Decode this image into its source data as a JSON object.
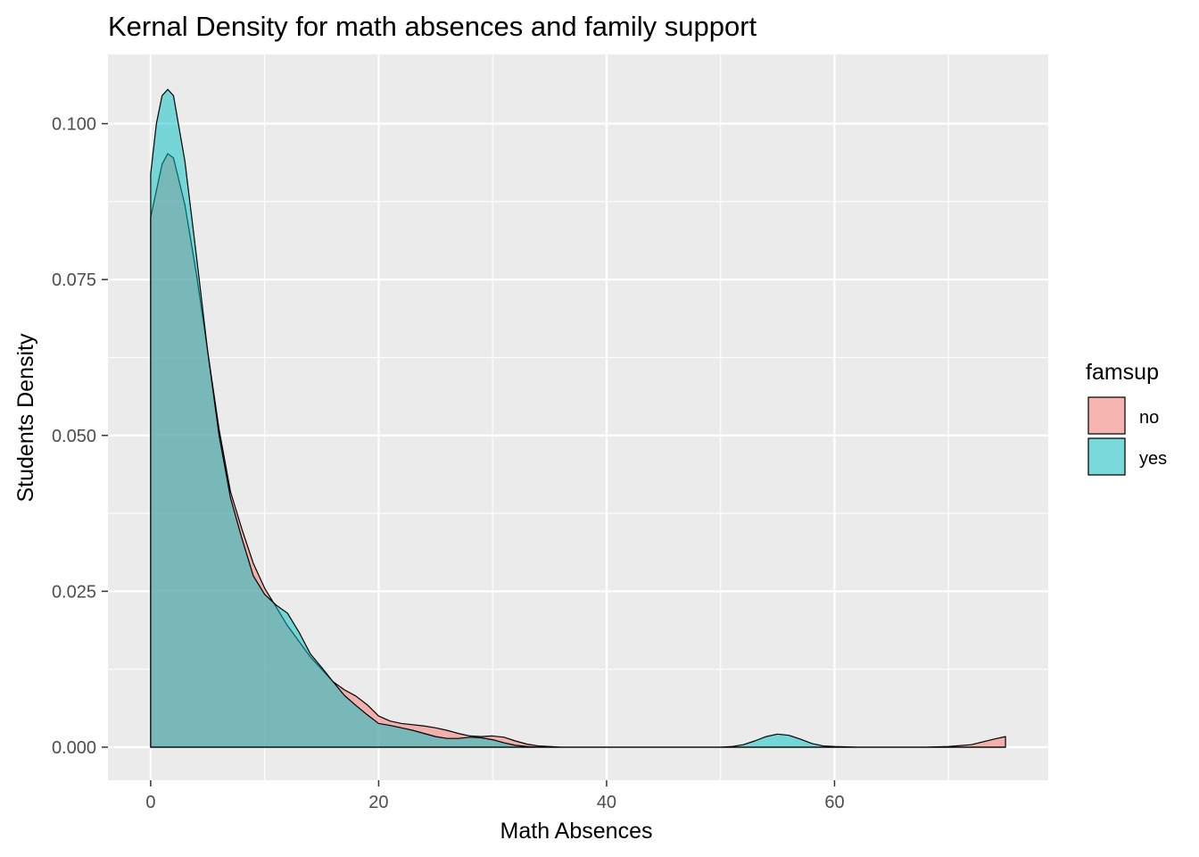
{
  "chart_data": {
    "type": "area",
    "title": "Kernal Density for math absences and family support",
    "xlabel": "Math Absences",
    "ylabel": "Students Density",
    "xlim": [
      -3.75,
      78.75
    ],
    "ylim": [
      -0.0053,
      0.1111
    ],
    "x_ticks": [
      0,
      20,
      40,
      60
    ],
    "x_tick_labels": [
      "0",
      "20",
      "40",
      "60"
    ],
    "y_ticks": [
      0,
      0.025,
      0.05,
      0.075,
      0.1
    ],
    "y_tick_labels": [
      "0.000",
      "0.025",
      "0.050",
      "0.075",
      "0.100"
    ],
    "grid": true,
    "legend": {
      "title": "famsup",
      "position": "right"
    },
    "series": [
      {
        "name": "no",
        "color": "#F8766D",
        "x": [
          0,
          1,
          1.5,
          2,
          3,
          4,
          5,
          6,
          7,
          8,
          9,
          10,
          11,
          12,
          13,
          14,
          15,
          16,
          17,
          18,
          19,
          20,
          21,
          22,
          23,
          24,
          25,
          26,
          27,
          28,
          29,
          30,
          31,
          32,
          33,
          34,
          35,
          36,
          38,
          40,
          45,
          50,
          55,
          60,
          65,
          68,
          70,
          72,
          74,
          75
        ],
        "y": [
          0.085,
          0.0935,
          0.0952,
          0.0945,
          0.087,
          0.076,
          0.0635,
          0.051,
          0.041,
          0.035,
          0.0295,
          0.0255,
          0.0225,
          0.0195,
          0.017,
          0.0145,
          0.0125,
          0.0105,
          0.0092,
          0.0082,
          0.0068,
          0.005,
          0.0042,
          0.0038,
          0.0036,
          0.0034,
          0.0031,
          0.0027,
          0.0022,
          0.0018,
          0.0017,
          0.0018,
          0.0016,
          0.001,
          0.0005,
          0.0002,
          0.0001,
          0.0,
          0.0,
          0.0,
          0.0,
          0.0,
          0.0,
          0.0,
          0.0,
          0.0,
          0.0001,
          0.0004,
          0.0013,
          0.0017
        ]
      },
      {
        "name": "yes",
        "color": "#00BFC4",
        "x": [
          0,
          0.5,
          1,
          1.5,
          2,
          3,
          4,
          5,
          6,
          7,
          8,
          9,
          10,
          11,
          12,
          13,
          14,
          15,
          16,
          17,
          18,
          19,
          20,
          21,
          22,
          23,
          24,
          25,
          26,
          27,
          28,
          29,
          30,
          31,
          32,
          33,
          34,
          35,
          40,
          45,
          50,
          51,
          52,
          53,
          54,
          55,
          56,
          57,
          58,
          59,
          60,
          62,
          65,
          70,
          75
        ],
        "y": [
          0.092,
          0.1,
          0.1045,
          0.1055,
          0.1045,
          0.094,
          0.079,
          0.0635,
          0.05,
          0.04,
          0.0335,
          0.0275,
          0.0245,
          0.0228,
          0.0215,
          0.0185,
          0.015,
          0.0128,
          0.0105,
          0.0083,
          0.0067,
          0.0052,
          0.0038,
          0.0035,
          0.0031,
          0.0027,
          0.0022,
          0.0017,
          0.0014,
          0.0014,
          0.0016,
          0.0015,
          0.0012,
          0.0007,
          0.0003,
          0.0001,
          0.0,
          0.0,
          0.0,
          0.0,
          0.0,
          0.0001,
          0.0004,
          0.001,
          0.0017,
          0.0021,
          0.0019,
          0.0013,
          0.0006,
          0.0002,
          0.0001,
          0.0,
          0.0,
          0.0,
          0.0
        ]
      }
    ]
  }
}
